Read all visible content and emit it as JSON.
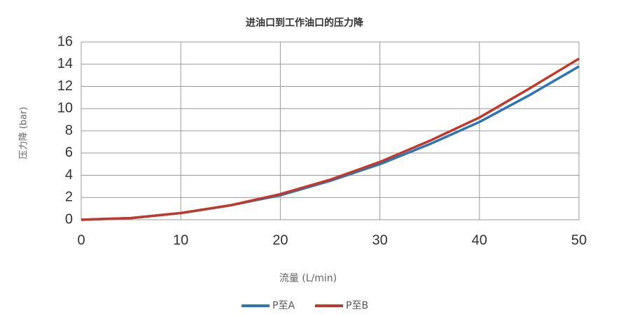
{
  "chart_data": {
    "type": "line",
    "title": "进油口到工作油口的压力降",
    "x_label": "流量 (L/min)",
    "y_label": "压力降 (bar)",
    "x": [
      0,
      5,
      10,
      15,
      20,
      25,
      30,
      35,
      40,
      45,
      50
    ],
    "series": [
      {
        "name": "P至A",
        "color": "#2e75b6",
        "values": [
          0,
          0.15,
          0.6,
          1.3,
          2.2,
          3.5,
          5.0,
          6.8,
          8.8,
          11.2,
          13.8
        ]
      },
      {
        "name": "P至B",
        "color": "#c0392b",
        "values": [
          0,
          0.15,
          0.6,
          1.3,
          2.3,
          3.6,
          5.2,
          7.1,
          9.2,
          11.8,
          14.5
        ]
      }
    ],
    "xlim": [
      0,
      50
    ],
    "xticks": [
      0,
      10,
      20,
      30,
      40,
      50
    ],
    "ylim": [
      0,
      16
    ],
    "yticks": [
      0,
      2,
      4,
      6,
      8,
      10,
      12,
      14,
      16
    ],
    "grid": true
  }
}
